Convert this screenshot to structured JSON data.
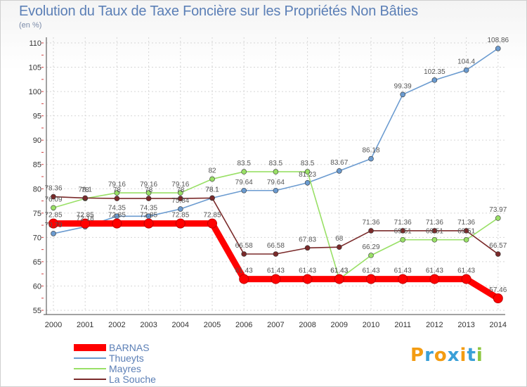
{
  "chart_data": {
    "type": "line",
    "title": "Evolution du Taux de Taxe Foncière sur les Propriétés Non Bâties",
    "subtitle": "(en %)",
    "xlabel": "",
    "ylabel": "",
    "x": [
      "2000",
      "2001",
      "2002",
      "2003",
      "2004",
      "2005",
      "2006",
      "2007",
      "2008",
      "2009",
      "2010",
      "2011",
      "2012",
      "2013",
      "2014"
    ],
    "ylim": [
      55,
      110
    ],
    "yticks": [
      55,
      60,
      65,
      70,
      75,
      80,
      85,
      90,
      95,
      100,
      105,
      110
    ],
    "grid": true,
    "legend": "bottom-left",
    "series": [
      {
        "name": "BARNAS",
        "color": "#ff0000",
        "values": [
          72.85,
          72.85,
          72.85,
          72.85,
          72.85,
          72.85,
          61.43,
          61.43,
          61.43,
          61.43,
          61.43,
          61.43,
          61.43,
          61.43,
          57.46
        ],
        "labels": [
          "72.85",
          "72.85",
          "72.85",
          "72.85",
          "72.85",
          "72.85",
          "61.43",
          "61.43",
          "61.43",
          "61.43",
          "61.43",
          "61.43",
          "61.43",
          "61.43",
          "57.46"
        ]
      },
      {
        "name": "Thueyts",
        "color": "#6b9bd0",
        "values": [
          70.79,
          72.18,
          74.35,
          74.35,
          75.84,
          78.1,
          79.64,
          79.64,
          81.23,
          83.67,
          86.18,
          99.39,
          102.35,
          104.4,
          108.86
        ],
        "labels": [
          "70.79",
          "72.18",
          "74.35",
          "74.35",
          "75.84",
          "78.1",
          "79.64",
          "79.64",
          "81.23",
          "83.67",
          "86.18",
          "99.39",
          "102.35",
          "104.4",
          "108.86"
        ]
      },
      {
        "name": "Mayres",
        "color": "#99e066",
        "values": [
          76.09,
          78,
          79.16,
          79.16,
          79.16,
          82,
          83.5,
          83.5,
          83.5,
          61.43,
          66.29,
          69.51,
          69.51,
          69.51,
          73.97
        ],
        "labels": [
          "76.09",
          "78",
          "79.16",
          "79.16",
          "79.16",
          "82",
          "83.5",
          "83.5",
          "83.5",
          "61.43",
          "66.29",
          "69.51",
          "69.51",
          "69.51",
          "73.97"
        ]
      },
      {
        "name": "La Souche",
        "color": "#7a2a2a",
        "values": [
          78.36,
          78.1,
          78,
          78,
          78,
          78.1,
          66.58,
          66.58,
          67.83,
          68,
          71.36,
          71.36,
          71.36,
          71.36,
          66.57
        ],
        "labels": [
          "78.36",
          "78.1",
          "78",
          "78",
          "78",
          "78.1",
          "66.58",
          "66.58",
          "67.83",
          "68",
          "71.36",
          "71.36",
          "71.36",
          "71.36",
          "66.57"
        ]
      }
    ]
  },
  "logo": {
    "letters": [
      "P",
      "r",
      "o",
      "x",
      "i",
      "t",
      "i"
    ],
    "colors": [
      "#f39c12",
      "#3aa0d8",
      "#f39c12",
      "#3aa0d8",
      "#f39c12",
      "#3aa0d8",
      "#8cc63f"
    ]
  }
}
